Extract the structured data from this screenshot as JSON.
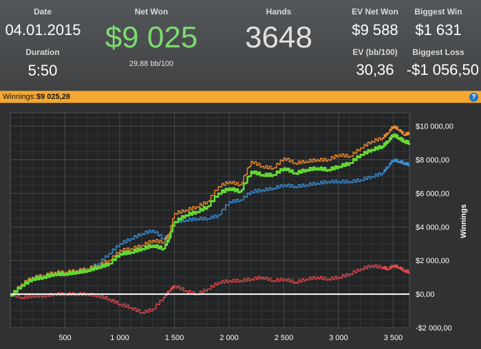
{
  "stats": {
    "date_label": "Date",
    "date_value": "04.01.2015",
    "duration_label": "Duration",
    "duration_value": "5:50",
    "net_won_label": "Net Won",
    "net_won_value": "$9 025",
    "net_won_sub": "29,88 bb/100",
    "hands_label": "Hands",
    "hands_value": "3648",
    "ev_net_won_label": "EV Net Won",
    "ev_net_won_value": "$9 588",
    "biggest_win_label": "Biggest Win",
    "biggest_win_value": "$1 631",
    "ev_bb_label": "EV (bb/100)",
    "ev_bb_value": "30,36",
    "biggest_loss_label": "Biggest Loss",
    "biggest_loss_value": "-$1 056,50"
  },
  "winnings_bar": {
    "label": "Winnings:",
    "value": "$9 025,28",
    "help_icon": "?"
  },
  "colors": {
    "net_won": "#7ddc6e",
    "orange_series": "#f08a2a",
    "green_series": "#66dd33",
    "blue_series": "#3a8fd6",
    "red_series": "#e04848",
    "zero_line": "#ffffff"
  },
  "chart_data": {
    "type": "line",
    "ylabel": "Winnings",
    "xlim": [
      0,
      3648
    ],
    "ylim": [
      -2000,
      10800
    ],
    "x_ticks": [
      500,
      1000,
      1500,
      2000,
      2500,
      3000,
      3500
    ],
    "x_tick_labels": [
      "500",
      "1 000",
      "1 500",
      "2 000",
      "2 500",
      "3 000",
      "3 500"
    ],
    "y_ticks": [
      -2000,
      0,
      2000,
      4000,
      6000,
      8000,
      10000
    ],
    "y_tick_labels": [
      "-$2 000,00",
      "$0,00",
      "$2 000,00",
      "$4 000,00",
      "$6 000,00",
      "$8 000,00",
      "$10 000,00"
    ],
    "grid": true,
    "series": [
      {
        "key": "orange",
        "color": "#f08a2a",
        "x": [
          0,
          100,
          200,
          300,
          400,
          500,
          600,
          700,
          800,
          900,
          1000,
          1100,
          1200,
          1300,
          1400,
          1450,
          1500,
          1600,
          1700,
          1800,
          1900,
          2000,
          2100,
          2200,
          2300,
          2400,
          2500,
          2600,
          2700,
          2800,
          2900,
          3000,
          3100,
          3200,
          3300,
          3400,
          3450,
          3500,
          3550,
          3600,
          3648
        ],
        "y": [
          -100,
          600,
          1000,
          1100,
          1300,
          1300,
          1400,
          1500,
          1700,
          2000,
          2600,
          2700,
          2900,
          3200,
          3100,
          3600,
          4800,
          5000,
          5200,
          5500,
          6400,
          6700,
          6500,
          7900,
          7600,
          7500,
          8100,
          7800,
          7900,
          8000,
          8000,
          8300,
          8200,
          8700,
          9100,
          9300,
          9600,
          10000,
          9800,
          9500,
          9600
        ]
      },
      {
        "key": "green",
        "color": "#66dd33",
        "x": [
          0,
          100,
          200,
          300,
          400,
          500,
          600,
          700,
          800,
          900,
          1000,
          1100,
          1200,
          1300,
          1400,
          1450,
          1500,
          1600,
          1700,
          1800,
          1900,
          2000,
          2100,
          2200,
          2300,
          2400,
          2500,
          2600,
          2700,
          2800,
          2900,
          3000,
          3100,
          3200,
          3300,
          3400,
          3450,
          3500,
          3550,
          3600,
          3648
        ],
        "y": [
          -100,
          500,
          900,
          1000,
          1200,
          1200,
          1300,
          1400,
          1600,
          1800,
          2400,
          2500,
          2700,
          2900,
          2700,
          3300,
          4300,
          4700,
          4900,
          5200,
          6000,
          6300,
          6100,
          7300,
          7100,
          7100,
          7500,
          7200,
          7400,
          7500,
          7400,
          7600,
          7800,
          8300,
          8600,
          8800,
          9100,
          9500,
          9300,
          9100,
          9000
        ]
      },
      {
        "key": "blue",
        "color": "#3a8fd6",
        "x": [
          0,
          100,
          200,
          300,
          400,
          500,
          600,
          700,
          800,
          900,
          1000,
          1100,
          1200,
          1300,
          1400,
          1450,
          1500,
          1600,
          1700,
          1800,
          1900,
          2000,
          2100,
          2200,
          2300,
          2400,
          2500,
          2600,
          2700,
          2800,
          2900,
          3000,
          3100,
          3200,
          3300,
          3400,
          3450,
          3500,
          3550,
          3600,
          3648
        ],
        "y": [
          -100,
          600,
          1000,
          1100,
          1200,
          1300,
          1400,
          1500,
          1800,
          2400,
          3000,
          3300,
          3600,
          3800,
          3300,
          3500,
          4300,
          4400,
          4500,
          4500,
          4700,
          5500,
          5600,
          6100,
          6200,
          6300,
          6500,
          6400,
          6500,
          6600,
          6700,
          6700,
          6700,
          6800,
          7000,
          7200,
          7600,
          8000,
          7900,
          7800,
          7700
        ]
      },
      {
        "key": "red",
        "color": "#e04848",
        "x": [
          0,
          100,
          200,
          300,
          400,
          500,
          600,
          700,
          800,
          900,
          1000,
          1100,
          1200,
          1300,
          1400,
          1450,
          1500,
          1600,
          1700,
          1800,
          1900,
          2000,
          2100,
          2200,
          2300,
          2400,
          2500,
          2600,
          2700,
          2800,
          2900,
          3000,
          3100,
          3200,
          3300,
          3400,
          3450,
          3500,
          3550,
          3600,
          3648
        ],
        "y": [
          0,
          -200,
          -100,
          -100,
          0,
          0,
          0,
          0,
          -100,
          -300,
          -600,
          -800,
          -1100,
          -900,
          -200,
          200,
          500,
          200,
          0,
          300,
          700,
          800,
          800,
          900,
          1000,
          800,
          900,
          700,
          900,
          1000,
          900,
          1000,
          1200,
          1500,
          1700,
          1600,
          1500,
          1700,
          1600,
          1400,
          1300
        ]
      },
      {
        "key": "zero",
        "color": "#ffffff",
        "x": [
          0,
          3648
        ],
        "y": [
          0,
          0
        ]
      }
    ]
  }
}
